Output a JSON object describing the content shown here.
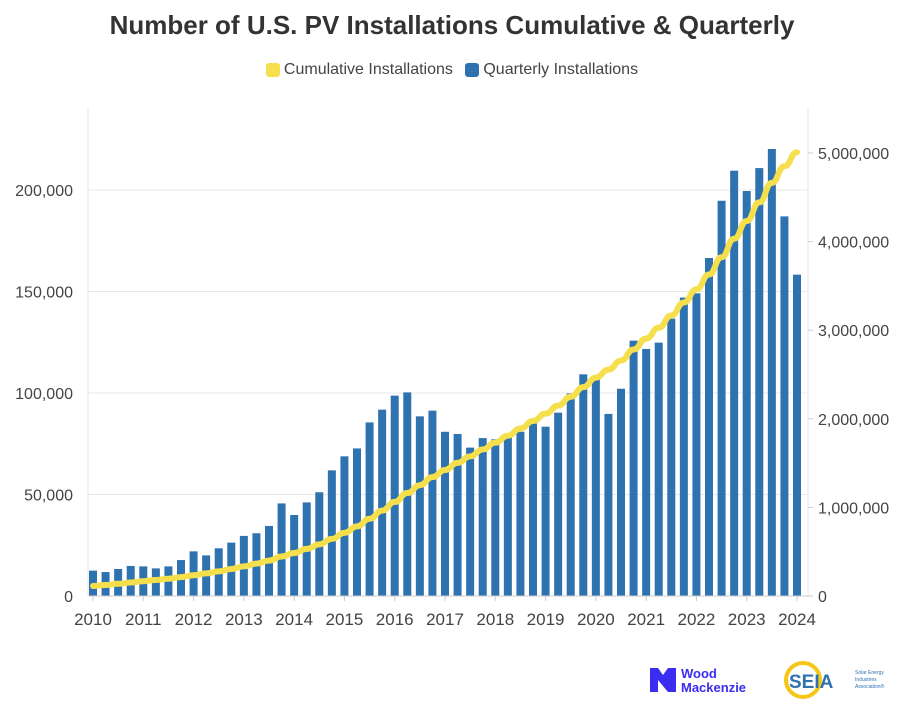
{
  "chart_data": {
    "type": "bar+line",
    "title": "Number of U.S. PV Installations Cumulative & Quarterly",
    "legend_placement": "top-center",
    "legend": [
      {
        "name": "Cumulative Installations",
        "color": "#f5df4d"
      },
      {
        "name": "Quarterly Installations",
        "color": "#2f72b0"
      }
    ],
    "x_tick_labels": [
      "2010",
      "2011",
      "2012",
      "2013",
      "2014",
      "2015",
      "2016",
      "2017",
      "2018",
      "2019",
      "2020",
      "2021",
      "2022",
      "2023",
      "2024"
    ],
    "left_axis": {
      "ylim": [
        0,
        220000
      ],
      "ticks": [
        0,
        50000,
        100000,
        150000,
        200000
      ],
      "tick_labels": [
        "0",
        "50,000",
        "100,000",
        "150,000",
        "200,000"
      ]
    },
    "right_axis": {
      "ylim": [
        0,
        5400000
      ],
      "ticks": [
        0,
        1000000,
        2000000,
        3000000,
        4000000,
        5000000
      ],
      "tick_labels": [
        "0",
        "1,000,000",
        "2,000,000",
        "3,000,000",
        "4,000,000",
        "5,000,000"
      ]
    },
    "grid": true,
    "start_year": 2010,
    "series": [
      {
        "name": "Quarterly Installations",
        "type": "bar",
        "axis": "left",
        "color": "#2f72b0",
        "values": [
          12500,
          11800,
          13300,
          14800,
          14600,
          13600,
          14600,
          17700,
          22000,
          20000,
          23500,
          26300,
          29600,
          30900,
          34500,
          45600,
          39900,
          46100,
          51100,
          61900,
          68800,
          72700,
          85500,
          91800,
          98700,
          100300,
          88500,
          91300,
          80900,
          79800,
          73100,
          77800,
          77200,
          78500,
          80900,
          85000,
          83400,
          90300,
          99800,
          109200,
          107200,
          89700,
          102100,
          125800,
          121700,
          124800,
          136600,
          147000,
          149100,
          166500,
          194700,
          209500,
          199500,
          210800,
          220200,
          187000,
          158300
        ]
      },
      {
        "name": "Cumulative Installations",
        "type": "line",
        "axis": "right",
        "color": "#f5df4d",
        "values": [
          112500,
          124300,
          137600,
          152400,
          167000,
          180600,
          195200,
          212900,
          234900,
          254900,
          278400,
          304700,
          334300,
          365200,
          399700,
          445300,
          485200,
          531300,
          582400,
          644300,
          713100,
          785800,
          871300,
          963100,
          1061800,
          1162100,
          1250600,
          1341900,
          1422800,
          1502600,
          1575700,
          1653500,
          1730700,
          1809200,
          1890100,
          1975100,
          2058500,
          2148800,
          2248600,
          2357800,
          2465000,
          2554700,
          2656800,
          2782600,
          2904300,
          3029100,
          3165700,
          3312700,
          3461800,
          3628300,
          3823000,
          4032500,
          4232000,
          4442800,
          4663000,
          4850000,
          5008300
        ]
      }
    ]
  },
  "logos": {
    "woodmac": "Wood Mackenzie",
    "seia": "SEIA",
    "seia_sub": "Solar Energy Industries Association"
  }
}
